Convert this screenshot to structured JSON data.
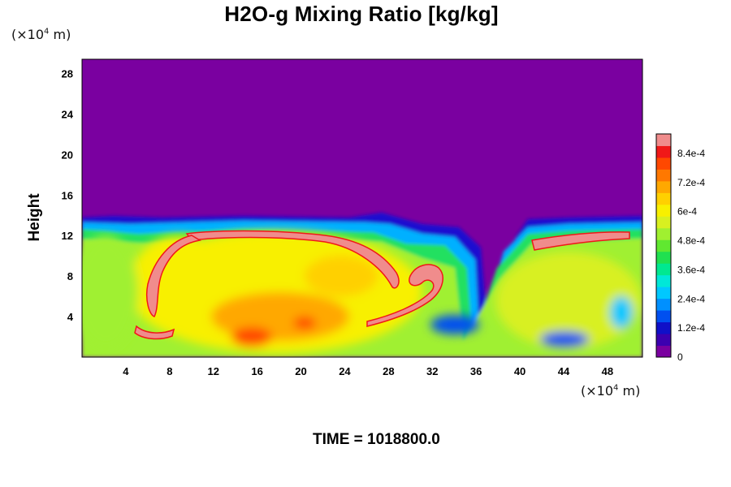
{
  "chart_data": {
    "type": "heatmap",
    "title": "H2O-g Mixing Ratio [kg/kg]",
    "xlabel": "",
    "ylabel": "Height",
    "x_unit_prefix": "(×10",
    "x_unit_exp": "4",
    "x_unit_suffix": " m)",
    "y_unit_prefix": "(×10",
    "y_unit_exp": "4",
    "y_unit_suffix": " m)",
    "x_ticks": [
      4,
      8,
      12,
      16,
      20,
      24,
      28,
      32,
      36,
      40,
      44,
      48
    ],
    "x_tick_labels": [
      "4",
      "8",
      "12",
      "16",
      "20",
      "24",
      "28",
      "32",
      "36",
      "40",
      "44",
      "48"
    ],
    "y_ticks": [
      4,
      8,
      12,
      16,
      20,
      24,
      28
    ],
    "y_tick_labels": [
      "4",
      "8",
      "12",
      "16",
      "20",
      "24",
      "28"
    ],
    "xlim": [
      0,
      51.2
    ],
    "ylim": [
      0,
      29.4
    ],
    "colorbar": {
      "min": 0,
      "max": 0.00092,
      "tick_values": [
        0,
        0.00012,
        0.00024,
        0.00036,
        0.00048,
        0.0006,
        0.00072,
        0.00084
      ],
      "tick_labels": [
        "0",
        "1.2e-4",
        "2.4e-4",
        "3.6e-4",
        "4.8e-4",
        "6e-4",
        "7.2e-4",
        "8.4e-4"
      ],
      "colors": [
        "#7a00a0",
        "#3c00b0",
        "#1010c8",
        "#0050f0",
        "#0090ff",
        "#00c8ff",
        "#00e8d8",
        "#00e890",
        "#20e050",
        "#60e830",
        "#a0f030",
        "#d8f020",
        "#f8f000",
        "#ffd000",
        "#ffa800",
        "#ff7800",
        "#ff4800",
        "#f01818",
        "#f08c8c"
      ]
    },
    "moist_layer_top_y": 13.5,
    "dry_value": 0
  },
  "time": "TIME = 1018800.0"
}
